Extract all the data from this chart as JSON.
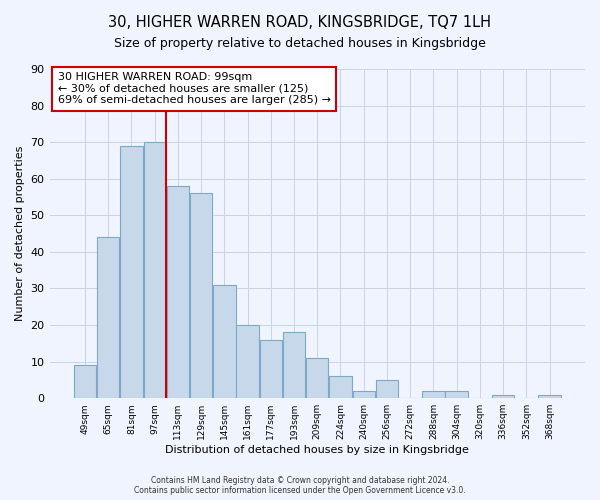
{
  "title": "30, HIGHER WARREN ROAD, KINGSBRIDGE, TQ7 1LH",
  "subtitle": "Size of property relative to detached houses in Kingsbridge",
  "xlabel": "Distribution of detached houses by size in Kingsbridge",
  "ylabel": "Number of detached properties",
  "bar_labels": [
    "49sqm",
    "65sqm",
    "81sqm",
    "97sqm",
    "113sqm",
    "129sqm",
    "145sqm",
    "161sqm",
    "177sqm",
    "193sqm",
    "209sqm",
    "224sqm",
    "240sqm",
    "256sqm",
    "272sqm",
    "288sqm",
    "304sqm",
    "320sqm",
    "336sqm",
    "352sqm",
    "368sqm"
  ],
  "bar_values": [
    9,
    44,
    69,
    70,
    58,
    56,
    31,
    20,
    16,
    18,
    11,
    6,
    2,
    5,
    0,
    2,
    2,
    0,
    1,
    0,
    1
  ],
  "bar_color": "#c8d8eb",
  "bar_edge_color": "#7fa8c8",
  "vline_x_index": 3,
  "vline_color": "#cc0000",
  "annotation_line1": "30 HIGHER WARREN ROAD: 99sqm",
  "annotation_line2": "← 30% of detached houses are smaller (125)",
  "annotation_line3": "69% of semi-detached houses are larger (285) →",
  "ylim": [
    0,
    90
  ],
  "yticks": [
    0,
    10,
    20,
    30,
    40,
    50,
    60,
    70,
    80,
    90
  ],
  "footer_line1": "Contains HM Land Registry data © Crown copyright and database right 2024.",
  "footer_line2": "Contains public sector information licensed under the Open Government Licence v3.0.",
  "bg_color": "#f0f4ff",
  "grid_color": "#c8d4e8"
}
